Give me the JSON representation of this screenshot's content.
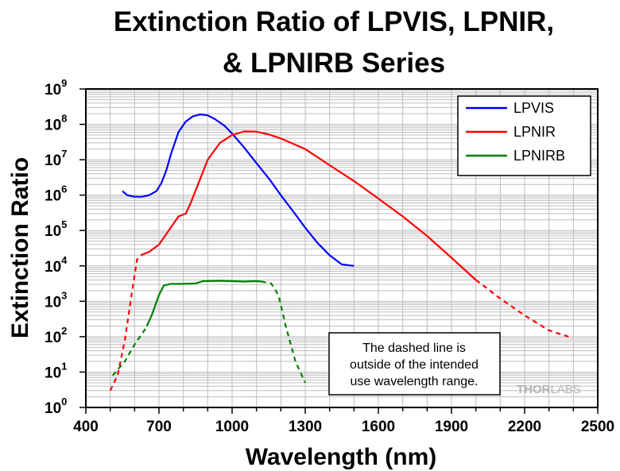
{
  "chart_data": {
    "type": "line",
    "title": [
      "Extinction Ratio of LPVIS, LPNIR,",
      "& LPNIRB Series"
    ],
    "xlabel": "Wavelength (nm)",
    "ylabel": "Extinction Ratio",
    "xlim": [
      400,
      2500
    ],
    "ylim": [
      1,
      1000000000
    ],
    "y_scale": "log",
    "grid": true,
    "legend_position": "top-right",
    "x_ticks": [
      {
        "value": 400,
        "label": "400"
      },
      {
        "value": 700,
        "label": "700"
      },
      {
        "value": 1000,
        "label": "1000"
      },
      {
        "value": 1300,
        "label": "1300"
      },
      {
        "value": 1600,
        "label": "1600"
      },
      {
        "value": 1900,
        "label": "1900"
      },
      {
        "value": 2200,
        "label": "2200"
      },
      {
        "value": 2500,
        "label": "2500"
      }
    ],
    "y_ticks": [
      {
        "value": 1,
        "base": "10",
        "exp": "0"
      },
      {
        "value": 10,
        "base": "10",
        "exp": "1"
      },
      {
        "value": 100,
        "base": "10",
        "exp": "2"
      },
      {
        "value": 1000,
        "base": "10",
        "exp": "3"
      },
      {
        "value": 10000,
        "base": "10",
        "exp": "4"
      },
      {
        "value": 100000,
        "base": "10",
        "exp": "5"
      },
      {
        "value": 1000000,
        "base": "10",
        "exp": "6"
      },
      {
        "value": 10000000,
        "base": "10",
        "exp": "7"
      },
      {
        "value": 100000000,
        "base": "10",
        "exp": "8"
      },
      {
        "value": 1000000000,
        "base": "10",
        "exp": "9"
      }
    ],
    "series": [
      {
        "name": "LPVIS",
        "color": "#0000ff",
        "segments": [
          {
            "style": "solid",
            "points": [
              [
                550,
                1300000
              ],
              [
                570,
                1000000
              ],
              [
                600,
                900000
              ],
              [
                630,
                900000
              ],
              [
                660,
                1000000
              ],
              [
                690,
                1300000
              ],
              [
                710,
                2200000
              ],
              [
                730,
                5000000
              ],
              [
                750,
                15000000
              ],
              [
                780,
                60000000
              ],
              [
                810,
                120000000
              ],
              [
                840,
                170000000
              ],
              [
                870,
                190000000
              ],
              [
                900,
                180000000
              ],
              [
                930,
                140000000
              ],
              [
                970,
                90000000
              ],
              [
                1000,
                55000000
              ],
              [
                1050,
                22000000
              ],
              [
                1100,
                8000000
              ],
              [
                1150,
                3000000
              ],
              [
                1200,
                1000000
              ],
              [
                1250,
                350000
              ],
              [
                1300,
                120000
              ],
              [
                1350,
                45000
              ],
              [
                1400,
                20000
              ],
              [
                1450,
                11000
              ],
              [
                1500,
                10000
              ]
            ]
          }
        ]
      },
      {
        "name": "LPNIR",
        "color": "#ff0000",
        "segments": [
          {
            "style": "dashed",
            "points": [
              [
                500,
                3
              ],
              [
                530,
                8
              ],
              [
                560,
                80
              ],
              [
                590,
                2000
              ],
              [
                610,
                15000
              ],
              [
                625,
                20000
              ]
            ]
          },
          {
            "style": "solid",
            "points": [
              [
                625,
                20000
              ],
              [
                660,
                25000
              ],
              [
                700,
                40000
              ],
              [
                740,
                100000
              ],
              [
                780,
                250000
              ],
              [
                810,
                300000
              ],
              [
                830,
                600000
              ],
              [
                860,
                2000000
              ],
              [
                900,
                10000000
              ],
              [
                950,
                30000000
              ],
              [
                1000,
                50000000
              ],
              [
                1050,
                63000000
              ],
              [
                1100,
                62000000
              ],
              [
                1150,
                52000000
              ],
              [
                1200,
                40000000
              ],
              [
                1300,
                20000000
              ],
              [
                1400,
                7000000
              ],
              [
                1500,
                2500000
              ],
              [
                1600,
                800000
              ],
              [
                1700,
                250000
              ],
              [
                1800,
                70000
              ],
              [
                1900,
                17000
              ],
              [
                2000,
                4000
              ]
            ]
          },
          {
            "style": "dashed",
            "points": [
              [
                2000,
                4000
              ],
              [
                2100,
                1200
              ],
              [
                2200,
                400
              ],
              [
                2300,
                150
              ],
              [
                2380,
                100
              ]
            ]
          }
        ]
      },
      {
        "name": "LPNIRB",
        "color": "#008000",
        "segments": [
          {
            "style": "dashed",
            "points": [
              [
                510,
                8
              ],
              [
                560,
                20
              ],
              [
                600,
                60
              ],
              [
                640,
                150
              ],
              [
                650,
                200
              ]
            ]
          },
          {
            "style": "solid",
            "points": [
              [
                650,
                200
              ],
              [
                670,
                400
              ],
              [
                700,
                1500
              ],
              [
                720,
                2800
              ],
              [
                750,
                3100
              ],
              [
                800,
                3100
              ],
              [
                850,
                3200
              ],
              [
                880,
                3700
              ],
              [
                950,
                3800
              ],
              [
                1000,
                3700
              ],
              [
                1050,
                3600
              ],
              [
                1100,
                3700
              ],
              [
                1120,
                3600
              ]
            ]
          },
          {
            "style": "dashed",
            "points": [
              [
                1120,
                3600
              ],
              [
                1160,
                3200
              ],
              [
                1190,
                1500
              ],
              [
                1220,
                200
              ],
              [
                1260,
                20
              ],
              [
                1300,
                5
              ]
            ]
          }
        ]
      }
    ],
    "annotations": [
      {
        "lines": [
          "The dashed line is",
          "outside of the intended",
          "use wavelength range."
        ],
        "position": "bottom-center"
      }
    ],
    "watermark": {
      "part1": "THOR",
      "part2": "LABS"
    }
  }
}
